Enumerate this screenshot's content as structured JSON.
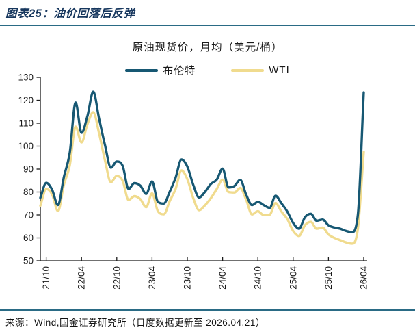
{
  "figure": {
    "title": "图表25：油价回落后反弹"
  },
  "source": {
    "text": "来源：Wind,国金证券研究所（日度数据更新至 2026.04.21）"
  },
  "colors": {
    "rule": "#2a6b85",
    "figure_title": "#17375e",
    "axis": "#1a1a1a",
    "brent_line": "#175873",
    "wti_line": "#f0db8e"
  },
  "chart_data": {
    "type": "line",
    "title": "原油现货价，月均（美元/桶）",
    "xlabel": "",
    "ylabel": "",
    "ylim": [
      50,
      130
    ],
    "y_ticks": [
      50,
      60,
      70,
      80,
      90,
      100,
      110,
      120,
      130
    ],
    "grid": false,
    "legend_position": "top",
    "x_tick_labels": [
      "21/10",
      "22/04",
      "22/10",
      "23/04",
      "23/10",
      "24/04",
      "24/10",
      "25/04",
      "25/10",
      "26/04"
    ],
    "x_tick_indices": [
      1,
      7,
      13,
      19,
      25,
      31,
      37,
      43,
      49,
      55
    ],
    "categories": [
      "21/09",
      "21/10",
      "21/11",
      "21/12",
      "22/01",
      "22/02",
      "22/03",
      "22/04",
      "22/05",
      "22/06",
      "22/07",
      "22/08",
      "22/09",
      "22/10",
      "22/11",
      "22/12",
      "23/01",
      "23/02",
      "23/03",
      "23/04",
      "23/05",
      "23/06",
      "23/07",
      "23/08",
      "23/09",
      "23/10",
      "23/11",
      "23/12",
      "24/01",
      "24/02",
      "24/03",
      "24/04",
      "24/05",
      "24/06",
      "24/07",
      "24/08",
      "24/09",
      "24/10",
      "24/11",
      "24/12",
      "25/01",
      "25/02",
      "25/03",
      "25/04",
      "25/05",
      "25/06",
      "25/07",
      "25/08",
      "25/09",
      "25/10",
      "25/11",
      "25/12",
      "26/01",
      "26/02",
      "26/03",
      "26/04"
    ],
    "series": [
      {
        "name": "布伦特",
        "color": "#175873",
        "values": [
          77.5,
          84,
          81,
          74.3,
          86.5,
          97.1,
          119,
          105.8,
          113,
          123.7,
          111.9,
          100.4,
          90.6,
          93.3,
          91.4,
          81.3,
          83.9,
          82.8,
          79.2,
          84.6,
          75.7,
          75,
          80.1,
          86.2,
          94.2,
          91.1,
          83.2,
          77.6,
          80.1,
          83.5,
          85.4,
          90.2,
          82,
          82.6,
          85.3,
          78.9,
          74.3,
          75.7,
          74.3,
          73.1,
          78.4,
          75.1,
          71.5,
          66.5,
          64,
          69,
          70.5,
          67.5,
          68,
          65.5,
          64.5,
          64,
          63,
          62.5,
          70,
          123.4
        ]
      },
      {
        "name": "WTI",
        "color": "#f0db8e",
        "values": [
          74,
          81.3,
          79,
          71.7,
          83.1,
          91.6,
          108.5,
          101.6,
          109.5,
          114.8,
          105.5,
          93.7,
          84.3,
          87,
          84.9,
          76.5,
          78.2,
          76.9,
          73.4,
          79.4,
          71.6,
          70.3,
          76,
          81.3,
          89.4,
          85.6,
          77.4,
          72.1,
          74.2,
          77.3,
          81.3,
          85.4,
          80,
          79.8,
          81.8,
          76.7,
          70.2,
          71.6,
          69.9,
          70.1,
          75.2,
          71.5,
          68.2,
          63,
          60.8,
          65.5,
          67,
          64,
          64.5,
          61.5,
          60,
          59,
          58,
          57.5,
          64,
          97.5
        ]
      }
    ]
  }
}
